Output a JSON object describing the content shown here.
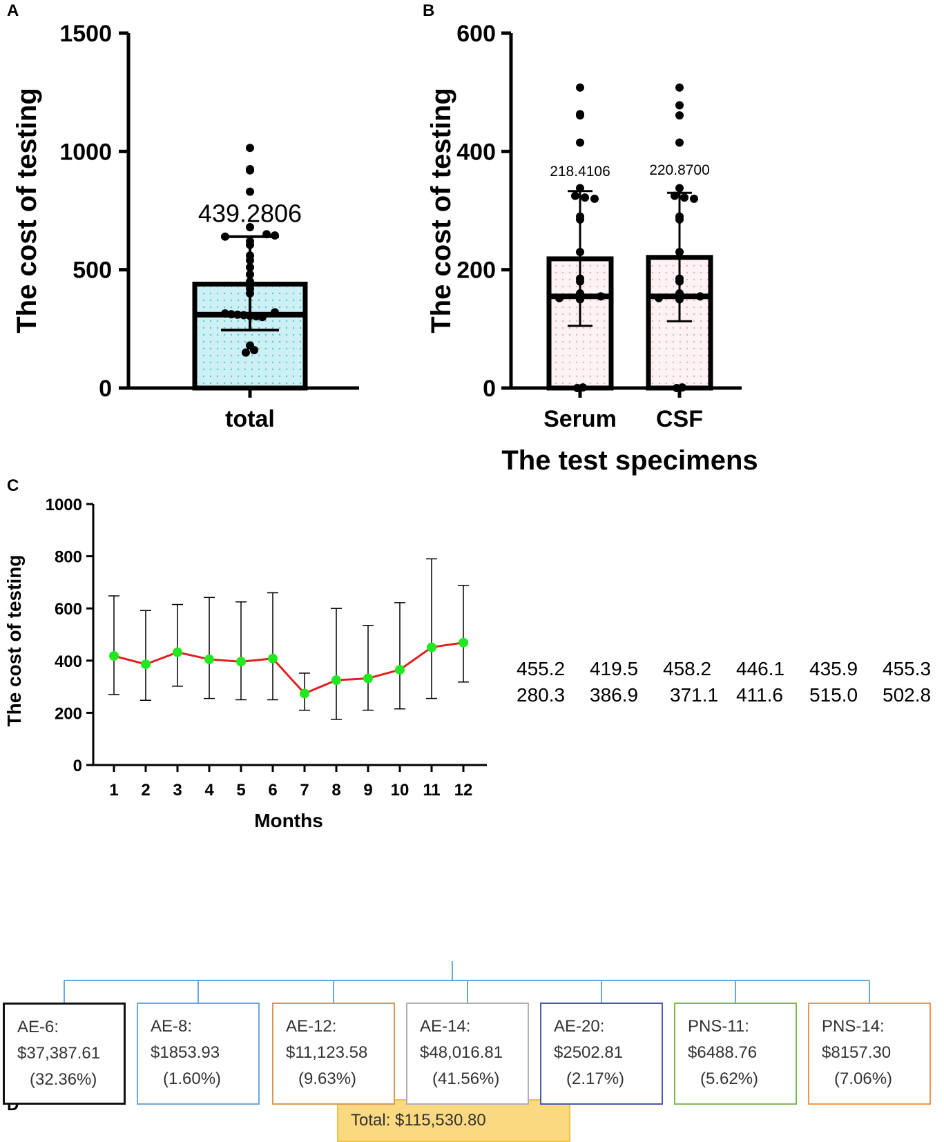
{
  "panels": {
    "A": "A",
    "B": "B",
    "C": "C",
    "D": "D"
  },
  "chart_data": [
    {
      "id": "A",
      "type": "bar",
      "categories": [
        "total"
      ],
      "values": [
        439.2806
      ],
      "value_label": "439.2806",
      "ylabel": "The cost of testing",
      "xlabel": "",
      "ylim": [
        0,
        1500
      ],
      "yticks": [
        0,
        500,
        1000,
        1500
      ],
      "error_bar": [
        245,
        640
      ],
      "median": 310,
      "points": [
        1015,
        925,
        920,
        830,
        680,
        650,
        645,
        640,
        620,
        605,
        560,
        540,
        510,
        480,
        450,
        420,
        400,
        320,
        315,
        312,
        310,
        308,
        305,
        303,
        300,
        180,
        160,
        150
      ],
      "colors": {
        "bar_fill": "#ccf0f4",
        "dots": "#56c8d0"
      }
    },
    {
      "id": "B",
      "type": "bar",
      "categories": [
        "Serum",
        "CSF"
      ],
      "values": [
        218.4106,
        220.87
      ],
      "value_labels": [
        "218.4106",
        "220.8700"
      ],
      "ylabel": "The cost of testing",
      "xlabel": "The test specimens",
      "ylim": [
        0,
        600
      ],
      "yticks": [
        0,
        200,
        400,
        600
      ],
      "error_bars": [
        [
          105,
          333
        ],
        [
          113,
          330
        ]
      ],
      "medians": [
        155,
        155
      ],
      "points": [
        [
          508,
          463,
          461,
          415,
          338,
          325,
          322,
          320,
          290,
          285,
          230,
          185,
          180,
          160,
          155,
          152,
          150,
          1,
          0
        ],
        [
          508,
          478,
          461,
          415,
          338,
          325,
          322,
          320,
          290,
          285,
          230,
          185,
          180,
          160,
          155,
          152,
          150,
          1,
          0
        ]
      ],
      "colors": {
        "bar_fill": "#fdf2f4",
        "dots": "#e8b0c0"
      }
    },
    {
      "id": "C",
      "type": "line",
      "x": [
        1,
        2,
        3,
        4,
        5,
        6,
        7,
        8,
        9,
        10,
        11,
        12
      ],
      "values": [
        418,
        386,
        432,
        405,
        396,
        408,
        274,
        325,
        332,
        365,
        451,
        469
      ],
      "err_low": [
        270,
        248,
        302,
        255,
        250,
        250,
        210,
        175,
        210,
        215,
        255,
        318
      ],
      "err_high": [
        648,
        592,
        615,
        642,
        625,
        660,
        352,
        600,
        535,
        622,
        790,
        688
      ],
      "ylabel": "The cost of testing",
      "xlabel": "Months",
      "ylim": [
        0,
        1000
      ],
      "yticks": [
        0,
        200,
        400,
        600,
        800,
        1000
      ],
      "colors": {
        "line": "#e02020",
        "marker": "#22e822"
      }
    }
  ],
  "value_table": [
    [
      "455.2",
      "419.5",
      "458.2",
      "446.1",
      "435.9",
      "455.3"
    ],
    [
      "280.3",
      "386.9",
      "371.1",
      "411.6",
      "515.0",
      "502.8"
    ]
  ],
  "tree": {
    "total_label": "Total:  $115,530.80",
    "items": [
      {
        "name": "AE-6:",
        "amount": "$37,387.61",
        "pct": "(32.36%)",
        "color": "#111111"
      },
      {
        "name": "AE-8:",
        "amount": "$1853.93",
        "pct": "(1.60%)",
        "color": "#6aa8d8"
      },
      {
        "name": "AE-12:",
        "amount": "$11,123.58",
        "pct": "(9.63%)",
        "color": "#d89858"
      },
      {
        "name": "AE-14:",
        "amount": "$48,016.81",
        "pct": "(41.56%)",
        "color": "#b0b0b0"
      },
      {
        "name": "AE-20:",
        "amount": "$2502.81",
        "pct": "(2.17%)",
        "color": "#4a5aa8"
      },
      {
        "name": "PNS-11:",
        "amount": "$6488.76",
        "pct": "(5.62%)",
        "color": "#80b850"
      },
      {
        "name": "PNS-14:",
        "amount": "$8157.30",
        "pct": "(7.06%)",
        "color": "#e89850"
      }
    ],
    "line_color": "#6aa8d8"
  }
}
